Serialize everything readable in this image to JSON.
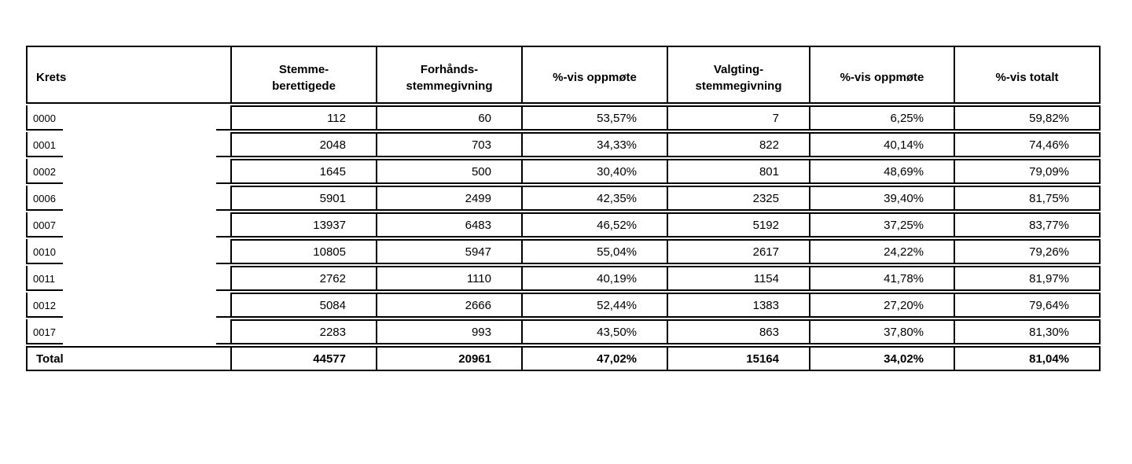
{
  "colors": {
    "border": "#000000",
    "text": "#000000",
    "page_background": "#ffffff"
  },
  "table": {
    "columns": [
      {
        "lines": [
          "Krets"
        ]
      },
      {
        "lines": [
          "Stemme-",
          "berettigede"
        ]
      },
      {
        "lines": [
          "Forhånds-",
          "stemmegivning"
        ]
      },
      {
        "lines": [
          "%-vis oppmøte"
        ]
      },
      {
        "lines": [
          "Valgting-",
          "stemmegivning"
        ]
      },
      {
        "lines": [
          "%-vis oppmøte"
        ]
      },
      {
        "lines": [
          "%-vis totalt"
        ]
      }
    ],
    "rows": [
      {
        "krets": "0000",
        "values": [
          "112",
          "60",
          "53,57%",
          "7",
          "6,25%",
          "59,82%"
        ]
      },
      {
        "krets": "0001",
        "values": [
          "2048",
          "703",
          "34,33%",
          "822",
          "40,14%",
          "74,46%"
        ]
      },
      {
        "krets": "0002",
        "values": [
          "1645",
          "500",
          "30,40%",
          "801",
          "48,69%",
          "79,09%"
        ]
      },
      {
        "krets": "0006",
        "values": [
          "5901",
          "2499",
          "42,35%",
          "2325",
          "39,40%",
          "81,75%"
        ]
      },
      {
        "krets": "0007",
        "values": [
          "13937",
          "6483",
          "46,52%",
          "5192",
          "37,25%",
          "83,77%"
        ]
      },
      {
        "krets": "0010",
        "values": [
          "10805",
          "5947",
          "55,04%",
          "2617",
          "24,22%",
          "79,26%"
        ]
      },
      {
        "krets": "0011",
        "values": [
          "2762",
          "1110",
          "40,19%",
          "1154",
          "41,78%",
          "81,97%"
        ]
      },
      {
        "krets": "0012",
        "values": [
          "5084",
          "2666",
          "52,44%",
          "1383",
          "27,20%",
          "79,64%"
        ]
      },
      {
        "krets": "0017",
        "values": [
          "2283",
          "993",
          "43,50%",
          "863",
          "37,80%",
          "81,30%"
        ]
      }
    ],
    "total": {
      "label": "Total",
      "values": [
        "44577",
        "20961",
        "47,02%",
        "15164",
        "34,02%",
        "81,04%"
      ]
    }
  }
}
